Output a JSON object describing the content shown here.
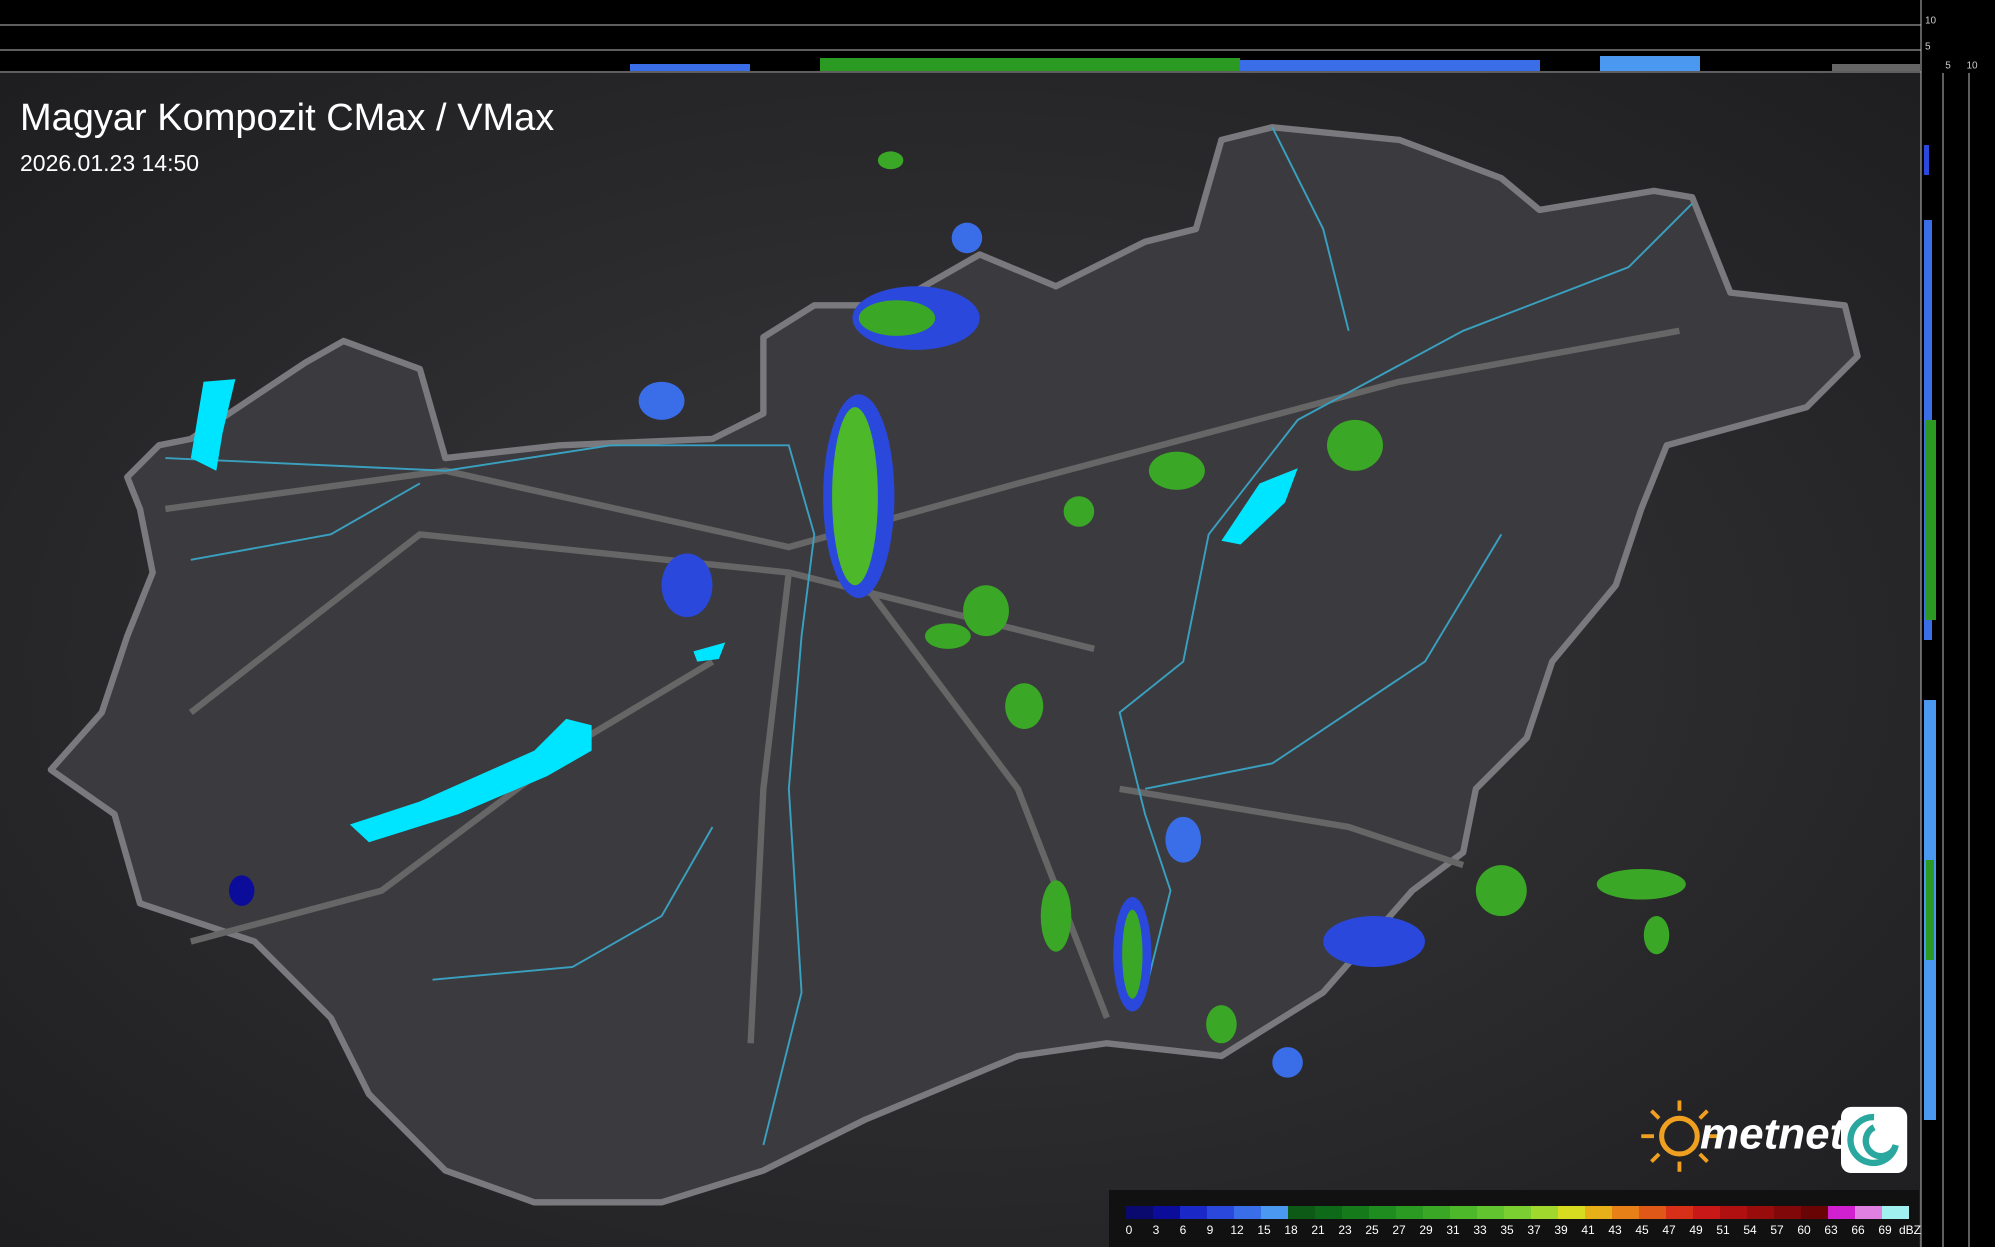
{
  "header": {
    "title": "Magyar Kompozit CMax / VMax",
    "timestamp": "2026.01.23 14:50"
  },
  "top_panel": {
    "ticks": [
      10,
      5
    ]
  },
  "side_panel": {
    "ticks": [
      5,
      10
    ]
  },
  "logo": {
    "text": "metnet"
  },
  "legend": {
    "unit": "dBZ",
    "ticks": [
      0,
      3,
      6,
      9,
      12,
      15,
      18,
      21,
      23,
      25,
      27,
      29,
      31,
      33,
      35,
      37,
      39,
      41,
      43,
      45,
      47,
      49,
      51,
      54,
      57,
      60,
      63,
      66,
      69
    ],
    "colors": [
      "#0a0a6e",
      "#0c0c9a",
      "#1a28c8",
      "#2a48dc",
      "#3a6ee8",
      "#4a98f0",
      "#0c5a16",
      "#0e6a18",
      "#157a1a",
      "#1f8c1f",
      "#2a9a22",
      "#3aa826",
      "#4cb82a",
      "#62c42e",
      "#7ccf30",
      "#a0d82e",
      "#d8dc20",
      "#e8b018",
      "#e88018",
      "#e05818",
      "#d83018",
      "#c81818",
      "#b01010",
      "#980c0c",
      "#800808",
      "#680404",
      "#d020d0",
      "#e080e0",
      "#a0f0f0"
    ]
  }
}
